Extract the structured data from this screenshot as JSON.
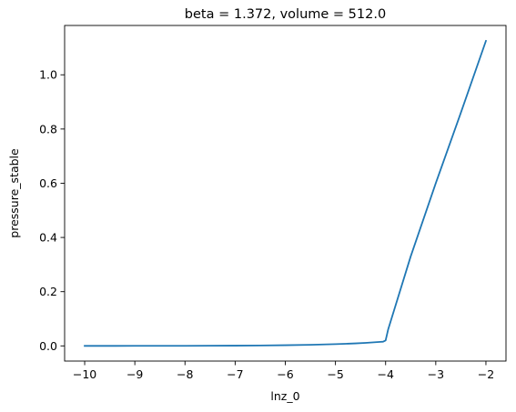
{
  "chart_data": {
    "type": "line",
    "title": "beta = 1.372, volume = 512.0",
    "xlabel": "lnz_0",
    "ylabel": "pressure_stable",
    "xlim": [
      -10.4,
      -1.6
    ],
    "ylim": [
      -0.056,
      1.182
    ],
    "xticks": [
      -10,
      -9,
      -8,
      -7,
      -6,
      -5,
      -4,
      -3,
      -2
    ],
    "yticks": [
      0.0,
      0.2,
      0.4,
      0.6,
      0.8,
      1.0
    ],
    "ytick_labels": [
      "0.0",
      "0.2",
      "0.4",
      "0.6",
      "0.8",
      "1.0"
    ],
    "grid": false,
    "series": [
      {
        "color": "#1f77b4",
        "x": [
          -10,
          -9.5,
          -9,
          -8.5,
          -8,
          -7.5,
          -7,
          -6.5,
          -6,
          -5.5,
          -5,
          -4.8,
          -4.6,
          -4.4,
          -4.2,
          -4.1,
          -4.05,
          -4.0,
          -3.95,
          -3.5,
          -3.0,
          -2.5,
          -2.0
        ],
        "y": [
          0.0,
          0.0,
          0.0001,
          0.0002,
          0.0003,
          0.0005,
          0.0009,
          0.0015,
          0.0025,
          0.004,
          0.0065,
          0.0078,
          0.0093,
          0.011,
          0.0135,
          0.0148,
          0.0155,
          0.02,
          0.06,
          0.33,
          0.6,
          0.86,
          1.125
        ]
      }
    ]
  }
}
